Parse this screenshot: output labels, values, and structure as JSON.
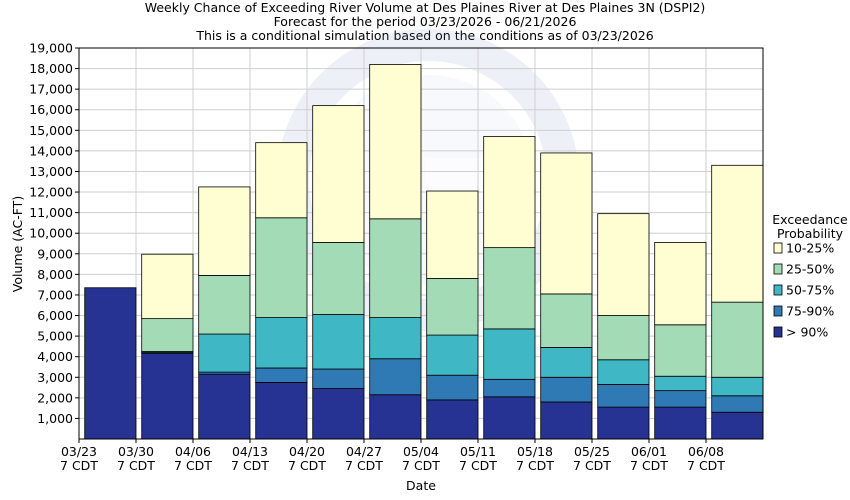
{
  "chart_data": {
    "type": "bar",
    "stacked": true,
    "title": "Weekly Chance of Exceeding River Volume at Des Plaines River at Des Plaines 3N (DSPI2)",
    "subtitle": "Forecast for the period 03/23/2026 - 06/21/2026",
    "subtitle2": "This is a conditional simulation based on the conditions as of 03/23/2026",
    "xlabel": "Date",
    "ylabel": "Volume (AC-FT)",
    "ylim": [
      0,
      19000
    ],
    "yticks": [
      1000,
      2000,
      3000,
      4000,
      5000,
      6000,
      7000,
      8000,
      9000,
      10000,
      11000,
      12000,
      13000,
      14000,
      15000,
      16000,
      17000,
      18000,
      19000
    ],
    "ytick_labels": [
      "1,000",
      "2,000",
      "3,000",
      "4,000",
      "5,000",
      "6,000",
      "7,000",
      "8,000",
      "9,000",
      "10,000",
      "11,000",
      "12,000",
      "13,000",
      "14,000",
      "15,000",
      "16,000",
      "17,000",
      "18,000",
      "19,000"
    ],
    "grid": true,
    "legend_title": [
      "Exceedance",
      "Probability"
    ],
    "legend_placement": "right",
    "categories": [
      [
        "03/23",
        "7 CDT"
      ],
      [
        "03/30",
        "7 CDT"
      ],
      [
        "04/06",
        "7 CDT"
      ],
      [
        "04/13",
        "7 CDT"
      ],
      [
        "04/20",
        "7 CDT"
      ],
      [
        "04/27",
        "7 CDT"
      ],
      [
        "05/04",
        "7 CDT"
      ],
      [
        "05/11",
        "7 CDT"
      ],
      [
        "05/18",
        "7 CDT"
      ],
      [
        "05/25",
        "7 CDT"
      ],
      [
        "06/01",
        "7 CDT"
      ],
      [
        "06/08",
        "7 CDT"
      ]
    ],
    "series": [
      {
        "name": "> 90%",
        "color": "#263393",
        "top": [
          7350,
          4150,
          3150,
          2750,
          2450,
          2150,
          1900,
          2050,
          1800,
          1550,
          1550,
          1300
        ]
      },
      {
        "name": "75-90%",
        "color": "#2f79b4",
        "top": [
          7350,
          4200,
          3250,
          3450,
          3400,
          3900,
          3100,
          2900,
          3000,
          2650,
          2350,
          2100
        ]
      },
      {
        "name": "50-75%",
        "color": "#3fb7c5",
        "top": [
          7350,
          4250,
          5100,
          5900,
          6050,
          5900,
          5050,
          5350,
          4450,
          3850,
          3050,
          3000
        ]
      },
      {
        "name": "25-50%",
        "color": "#a2dbb6",
        "top": [
          7350,
          5850,
          7950,
          10750,
          9550,
          10700,
          7800,
          9300,
          7050,
          6000,
          5550,
          6650
        ]
      },
      {
        "name": "10-25%",
        "color": "#fefed2",
        "top": [
          7350,
          8980,
          12250,
          14400,
          16200,
          18200,
          12050,
          14700,
          13900,
          10950,
          9550,
          13300
        ]
      }
    ]
  },
  "watermark": {
    "text": "NATIONAL OCEANIC AND ATMOSPHERIC ADMINISTRATION"
  }
}
